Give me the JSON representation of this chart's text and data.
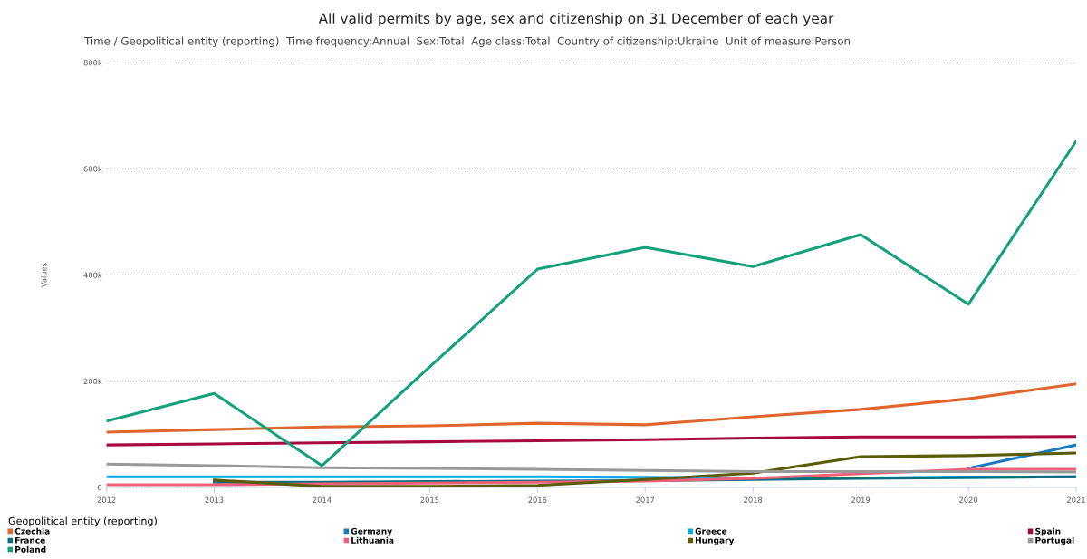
{
  "chart_data": {
    "type": "line",
    "title": "All valid permits by age, sex and citizenship on 31 December of each year",
    "subtitle": "Time / Geopolitical entity (reporting)  Time frequency:Annual  Sex:Total  Age class:Total  Country of citizenship:Ukraine  Unit of measure:Person",
    "ylabel": "Values",
    "legend_title": "Geopolitical entity (reporting)",
    "x": [
      2012,
      2013,
      2014,
      2015,
      2016,
      2017,
      2018,
      2019,
      2020,
      2021
    ],
    "xlim": [
      2012,
      2021
    ],
    "xticks": [
      2012,
      2013,
      2014,
      2015,
      2016,
      2017,
      2018,
      2019,
      2020,
      2021
    ],
    "ylim": [
      0,
      800000
    ],
    "yticks": [
      {
        "value": 0,
        "label": "0"
      },
      {
        "value": 200000,
        "label": "200k"
      },
      {
        "value": 400000,
        "label": "400k"
      },
      {
        "value": 600000,
        "label": "600k"
      },
      {
        "value": 800000,
        "label": "800k"
      }
    ],
    "grid": "y",
    "legend": "bottom",
    "marker": "none",
    "line_style": "solid",
    "series": [
      {
        "name": "Czechia",
        "color": "#e0662d",
        "values": [
          104000,
          109000,
          114000,
          116000,
          121000,
          118000,
          133000,
          147000,
          167000,
          195000
        ]
      },
      {
        "name": "Germany",
        "color": "#1a7ac0",
        "values": [
          null,
          null,
          null,
          null,
          null,
          null,
          null,
          null,
          36000,
          80000
        ]
      },
      {
        "name": "Greece",
        "color": "#0da8f0",
        "values": [
          20000,
          20000,
          20000,
          20000,
          20000,
          19000,
          18000,
          18000,
          19000,
          20000
        ]
      },
      {
        "name": "Spain",
        "color": "#a8093e",
        "values": [
          80000,
          82000,
          84000,
          86000,
          88000,
          90000,
          93000,
          95000,
          95000,
          96000
        ]
      },
      {
        "name": "France",
        "color": "#0b6e7f",
        "values": [
          null,
          10000,
          10000,
          11000,
          12000,
          13000,
          15000,
          17000,
          19000,
          20000
        ]
      },
      {
        "name": "Lithuania",
        "color": "#f0607a",
        "values": [
          5000,
          5000,
          7000,
          8000,
          10000,
          12000,
          17000,
          26000,
          34000,
          34000
        ]
      },
      {
        "name": "Hungary",
        "color": "#5c5c08",
        "values": [
          null,
          14000,
          2000,
          2000,
          4000,
          15000,
          27000,
          58000,
          60000,
          65000
        ]
      },
      {
        "name": "Portugal",
        "color": "#999999",
        "values": [
          44000,
          41000,
          37000,
          36000,
          34000,
          32000,
          30000,
          30000,
          30000,
          29000
        ]
      },
      {
        "name": "Poland",
        "color": "#13a07a",
        "values": [
          125000,
          177000,
          41000,
          227000,
          411000,
          452000,
          416000,
          476000,
          345000,
          652000
        ]
      }
    ]
  }
}
